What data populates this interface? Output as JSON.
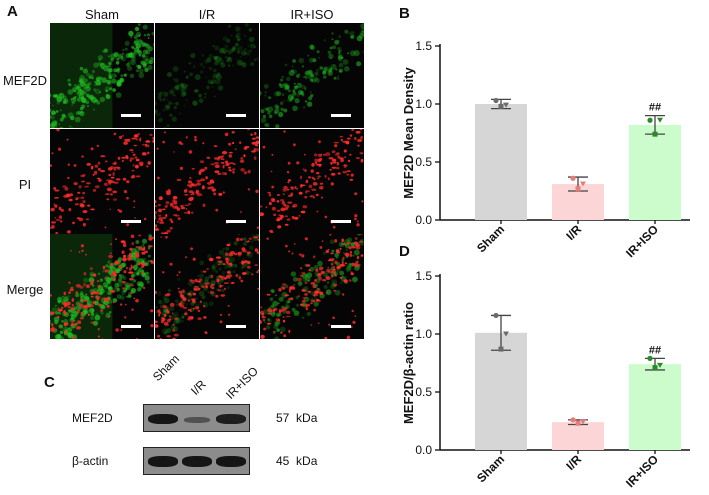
{
  "panel_a": {
    "letter": "A",
    "columns": [
      "Sham",
      "I/R",
      "IR+ISO"
    ],
    "rows": [
      "MEF2D",
      "PI",
      "Merge"
    ],
    "colors": {
      "mef2d": "#22c422",
      "pi": "#ff2a2a",
      "background": "#050505",
      "scalebar": "#ffffff"
    }
  },
  "panel_c": {
    "letter": "C",
    "lanes": [
      "Sham",
      "I/R",
      "IR+ISO"
    ],
    "rows": [
      {
        "protein": "MEF2D",
        "size": "57",
        "unit": "kDa",
        "band_intensity": [
          1.0,
          0.45,
          0.9
        ]
      },
      {
        "protein": "β-actin",
        "size": "45",
        "unit": "kDa",
        "band_intensity": [
          1.0,
          1.0,
          1.0
        ]
      }
    ]
  },
  "chart_data": [
    {
      "letter": "B",
      "type": "bar",
      "categories": [
        "Sham",
        "I/R",
        "IR+ISO"
      ],
      "values": [
        1.0,
        0.31,
        0.82
      ],
      "errors": [
        0.04,
        0.06,
        0.08
      ],
      "points": [
        [
          1.03,
          0.98,
          0.99
        ],
        [
          0.36,
          0.27,
          0.31
        ],
        [
          0.86,
          0.74,
          0.86
        ]
      ],
      "bar_colors": [
        "#d6d6d6",
        "#fcd6d6",
        "#ccfbcc"
      ],
      "point_colors": [
        "#6b6b6b",
        "#e87c7c",
        "#2a8a2a"
      ],
      "annotations": [
        "",
        "",
        "##"
      ],
      "ylabel": "MEF2D Mean Density",
      "ylim": [
        0,
        1.5
      ],
      "yticks": [
        "0.0",
        "0.5",
        "1.0",
        "1.5"
      ],
      "grid": false
    },
    {
      "letter": "D",
      "type": "bar",
      "categories": [
        "Sham",
        "I/R",
        "IR+ISO"
      ],
      "values": [
        1.01,
        0.24,
        0.74
      ],
      "errors": [
        0.15,
        0.02,
        0.05
      ],
      "points": [
        [
          1.16,
          0.87,
          1.0
        ],
        [
          0.26,
          0.23,
          0.24
        ],
        [
          0.79,
          0.71,
          0.73
        ]
      ],
      "bar_colors": [
        "#d6d6d6",
        "#fcd6d6",
        "#ccfbcc"
      ],
      "point_colors": [
        "#6b6b6b",
        "#e87c7c",
        "#2a8a2a"
      ],
      "annotations": [
        "",
        "",
        "##"
      ],
      "ylabel": "MEF2D/β-actin ratio",
      "ylim": [
        0,
        1.5
      ],
      "yticks": [
        "0.0",
        "0.5",
        "1.0",
        "1.5"
      ],
      "grid": false
    }
  ]
}
